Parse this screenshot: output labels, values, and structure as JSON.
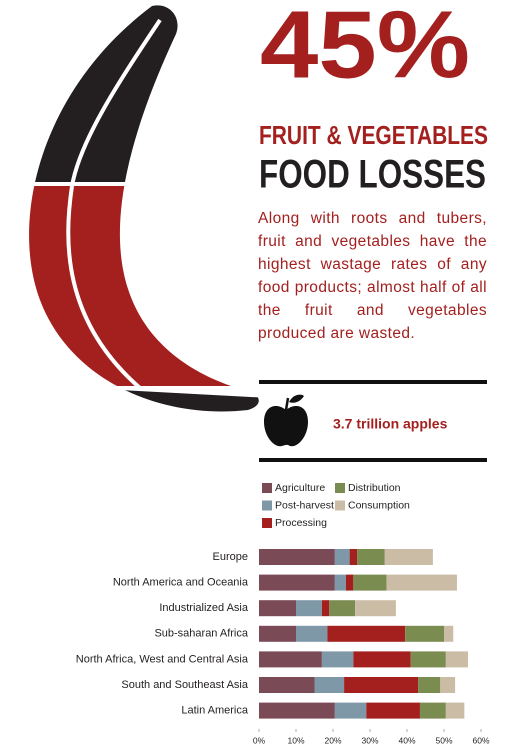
{
  "headline": "45%",
  "subtitle": "FRUIT & VEGETABLES",
  "title": "FOOD LOSSES",
  "description": "Along with roots and tubers, fruit and vegetables have the highest wastage rates of any food products; almost half of all the fruit and vegetables produced are wasted.",
  "apples_note": "3.7 trillion apples",
  "chart_data": {
    "type": "bar",
    "orientation": "horizontal",
    "stacked": true,
    "categories": [
      "Europe",
      "North America and Oceania",
      "Industrialized Asia",
      "Sub-saharan Africa",
      "North Africa, West and Central Asia",
      "South and Southeast Asia",
      "Latin America"
    ],
    "series": [
      {
        "name": "Agriculture",
        "color": "#7a4a56",
        "values": [
          20.5,
          20.5,
          10,
          10,
          17,
          15,
          20.5
        ]
      },
      {
        "name": "Post-harvest",
        "color": "#7f98a8",
        "values": [
          4,
          3,
          7,
          8.5,
          8.5,
          8,
          8.5
        ]
      },
      {
        "name": "Processing",
        "color": "#a3201f",
        "values": [
          2,
          2,
          2,
          21,
          15.5,
          20,
          14.5
        ]
      },
      {
        "name": "Distribution",
        "color": "#7b8c50",
        "values": [
          7.5,
          9,
          7,
          10.5,
          9.5,
          6,
          7
        ]
      },
      {
        "name": "Consumption",
        "color": "#cbbca6",
        "values": [
          13,
          19,
          11,
          2.5,
          6,
          4,
          5
        ]
      }
    ],
    "xlim": [
      0,
      60
    ],
    "xticks": [
      {
        "value": 0,
        "label": "0%"
      },
      {
        "value": 10,
        "label": "10%"
      },
      {
        "value": 20,
        "label": "20%"
      },
      {
        "value": 30,
        "label": "30%"
      },
      {
        "value": 40,
        "label": "40%"
      },
      {
        "value": 50,
        "label": "50%"
      },
      {
        "value": 60,
        "label": "60%"
      }
    ]
  }
}
